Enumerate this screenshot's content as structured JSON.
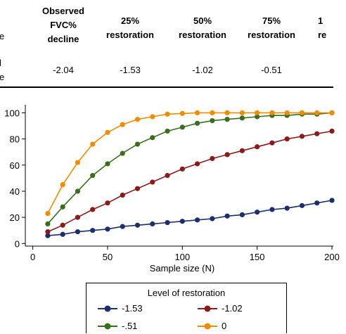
{
  "table": {
    "row_label_fragments": [
      "e",
      "l",
      "e"
    ],
    "columns": [
      {
        "header": [
          "Observed",
          "FVC%",
          "decline"
        ],
        "value": "-2.04"
      },
      {
        "header": [
          "25%",
          "restoration"
        ],
        "value": "-1.53"
      },
      {
        "header": [
          "50%",
          "restoration"
        ],
        "value": "-1.02"
      },
      {
        "header": [
          "75%",
          "restoration"
        ],
        "value": "-0.51"
      },
      {
        "header": [
          "1",
          "re"
        ],
        "value": ""
      }
    ]
  },
  "chart_data": {
    "type": "line",
    "xlabel": "Sample size (N)",
    "ylabel": "",
    "xlim": [
      -5,
      200
    ],
    "ylim": [
      -2,
      104
    ],
    "x_ticks": [
      0,
      50,
      100,
      150,
      200
    ],
    "x_tick_labels": [
      "0",
      "50",
      "100",
      "150",
      "200"
    ],
    "y_ticks": [
      0,
      20,
      40,
      60,
      80,
      100
    ],
    "y_tick_labels": [
      "0",
      "20",
      "40",
      "60",
      "80",
      "100"
    ],
    "grid": false,
    "legend_title": "Level of restoration",
    "legend_position": "bottom",
    "x": [
      10,
      20,
      30,
      40,
      50,
      60,
      70,
      80,
      90,
      100,
      110,
      120,
      130,
      140,
      150,
      160,
      170,
      180,
      190,
      200
    ],
    "series": [
      {
        "name": "-1.53",
        "color": "#1a2f6b",
        "values": [
          6,
          7,
          9,
          10,
          11,
          13,
          14,
          15,
          16,
          17,
          18,
          19,
          21,
          22,
          24,
          26,
          27,
          29,
          31,
          33
        ]
      },
      {
        "name": "-1.02",
        "color": "#8b1a1a",
        "values": [
          9,
          14,
          20,
          26,
          31,
          37,
          42,
          47,
          52,
          57,
          61,
          65,
          68,
          71,
          74,
          77,
          80,
          82,
          84,
          86
        ]
      },
      {
        "name": "-.51",
        "color": "#3a6e1e",
        "values": [
          15,
          28,
          40,
          52,
          61,
          69,
          76,
          81,
          86,
          89,
          92,
          94,
          95,
          96,
          97,
          98,
          98,
          99,
          99,
          100
        ]
      },
      {
        "name": "0",
        "color": "#f08c00",
        "values": [
          23,
          45,
          62,
          76,
          85,
          91,
          95,
          97,
          99,
          99.5,
          100,
          100,
          100,
          100,
          100,
          100,
          100,
          100,
          100,
          100
        ]
      }
    ]
  }
}
